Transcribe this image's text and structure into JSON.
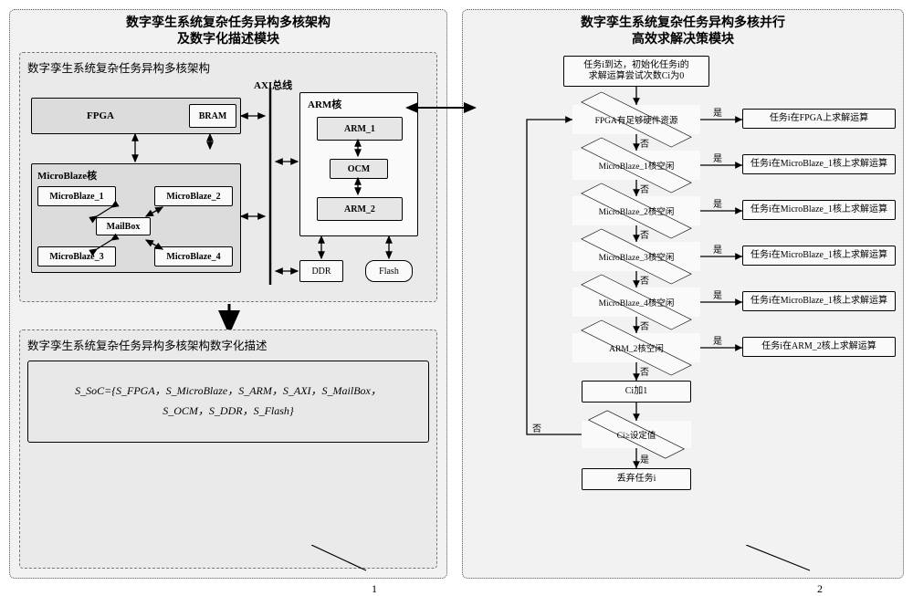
{
  "left_module_title": "数字孪生系统复杂任务异构多核架构\n及数字化描述模块",
  "right_module_title": "数字孪生系统复杂任务异构多核并行\n高效求解决策模块",
  "arch_panel_title": "数字孪生系统复杂任务异构多核架构",
  "desc_panel_title": "数字孪生系统复杂任务异构多核架构数字化描述",
  "axi_label": "AXI总线",
  "blocks": {
    "fpga": "FPGA",
    "bram": "BRAM",
    "mb_core": "MicroBlaze核",
    "mb1": "MicroBlaze_1",
    "mb2": "MicroBlaze_2",
    "mb3": "MicroBlaze_3",
    "mb4": "MicroBlaze_4",
    "mailbox": "MailBox",
    "arm_core": "ARM核",
    "arm1": "ARM_1",
    "ocm": "OCM",
    "arm2": "ARM_2",
    "ddr": "DDR",
    "flash": "Flash"
  },
  "desc_formula": "S_SoC={S_FPGA，S_MicroBlaze，S_ARM，S_AXI，S_MailBox，\nS_OCM，S_DDR，S_Flash}",
  "flow": {
    "start": "任务i到达，初始化任务i的\n求解运算尝试次数Ci为0",
    "d1": "FPGA有足够硬件资源",
    "d2": "MicroBlaze_1核空闲",
    "d3": "MicroBlaze_2核空闲",
    "d4": "MicroBlaze_3核空闲",
    "d5": "MicroBlaze_4核空闲",
    "d6": "ARM_2核空闲",
    "a1": "任务i在FPGA上求解运算",
    "a2": "任务i在MicroBlaze_1核上求解运算",
    "a3": "任务i在MicroBlaze_1核上求解运算",
    "a4": "任务i在MicroBlaze_1核上求解运算",
    "a5": "任务i在MicroBlaze_1核上求解运算",
    "a6": "任务i在ARM_2核上求解运算",
    "inc": "Ci加1",
    "cmp": "Ci≥设定值",
    "drop": "丢弃任务i"
  },
  "labels": {
    "yes": "是",
    "no": "否"
  },
  "annotations": {
    "left_num": "1",
    "right_num": "2"
  },
  "colors": {
    "panel_bg": "#f2f2f2",
    "sub_bg": "#eaeaea",
    "block_dark": "#dcdcdc",
    "block_light": "#fafafa"
  }
}
